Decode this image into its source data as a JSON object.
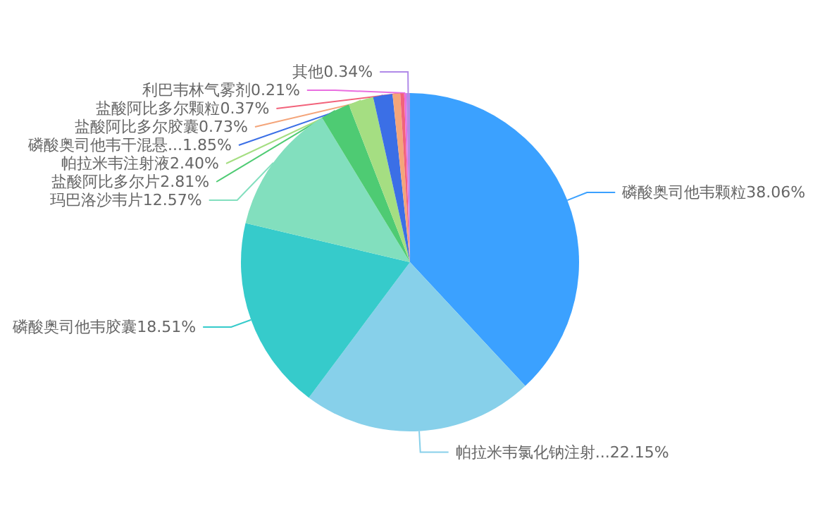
{
  "chart_data": {
    "type": "pie",
    "categories": [
      "磷酸奥司他韦颗粒",
      "帕拉米韦氯化钠注射...",
      "磷酸奥司他韦胶囊",
      "玛巴洛沙韦片",
      "盐酸阿比多尔片",
      "帕拉米韦注射液",
      "磷酸奥司他韦干混悬...",
      "盐酸阿比多尔胶囊",
      "盐酸阿比多尔颗粒",
      "利巴韦林气雾剂",
      "其他"
    ],
    "values": [
      38.06,
      22.15,
      18.51,
      12.57,
      2.81,
      2.4,
      1.85,
      0.73,
      0.37,
      0.21,
      0.34
    ],
    "value_labels": [
      "38.06%",
      "22.15%",
      "18.51%",
      "12.57%",
      "2.81%",
      "2.40%",
      "1.85%",
      "0.73%",
      "0.37%",
      "0.21%",
      "0.34%"
    ],
    "colors": [
      "#3ba1ff",
      "#87d0ea",
      "#36cbcb",
      "#82dfbe",
      "#4ecb73",
      "#a5de82",
      "#3b6fe6",
      "#f4a57a",
      "#f2637b",
      "#e96ee0",
      "#b08ae8"
    ],
    "legend": false
  }
}
